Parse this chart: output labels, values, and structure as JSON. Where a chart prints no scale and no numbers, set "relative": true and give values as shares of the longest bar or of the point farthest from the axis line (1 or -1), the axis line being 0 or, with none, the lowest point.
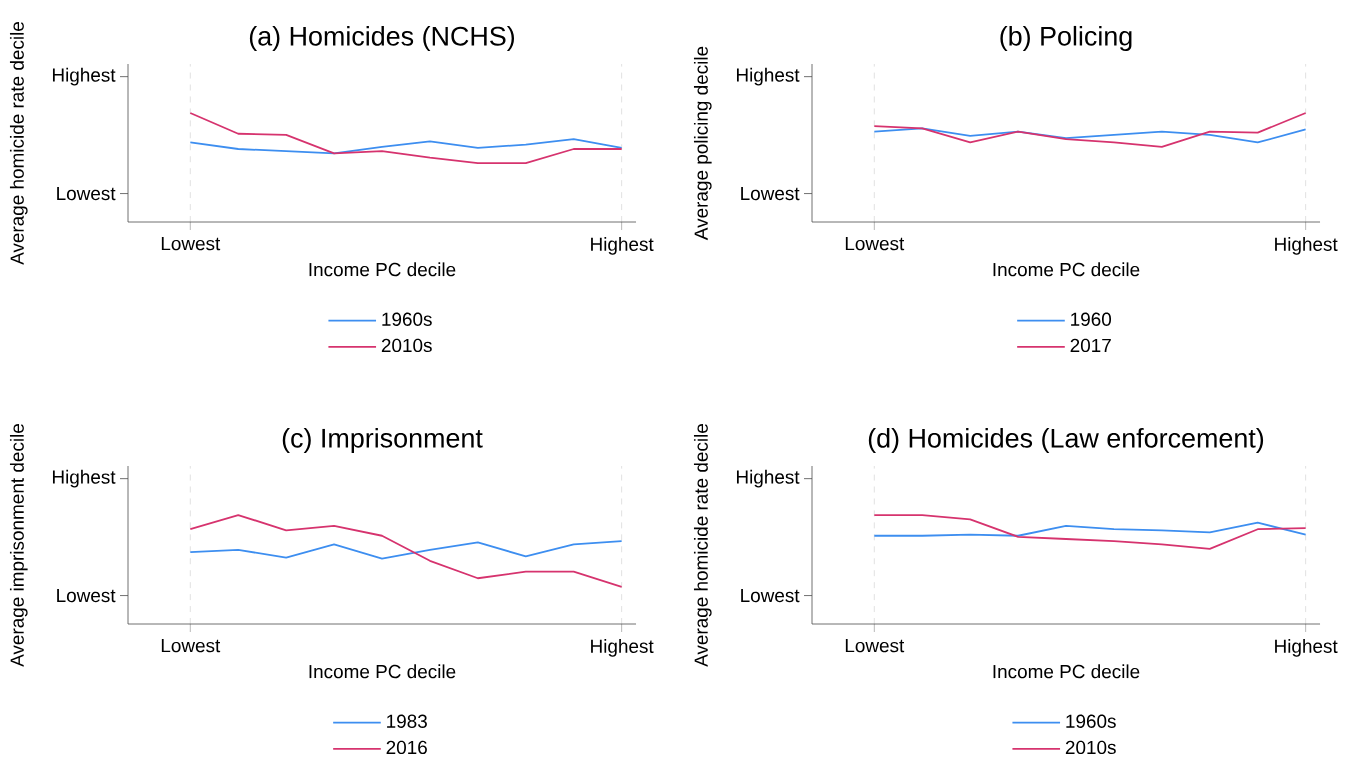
{
  "chart_data": [
    {
      "type": "line",
      "relative": true,
      "title": "(a) Homicides (NCHS)",
      "xlabel": "Income PC decile",
      "ylabel": "Average homicide rate decile",
      "categories": [
        "Lowest",
        null,
        null,
        null,
        null,
        null,
        null,
        null,
        null,
        "Highest"
      ],
      "annotations": [
        "Highest",
        "Lowest"
      ],
      "grid": "x",
      "legend": "bottom",
      "series": [
        {
          "name": "1960s",
          "color": "#3d8ef0",
          "values": [
            0.73,
            0.67,
            0.65,
            0.63,
            0.69,
            0.74,
            0.68,
            0.71,
            0.76,
            0.68
          ]
        },
        {
          "name": "2010s",
          "color": "#d6336e",
          "values": [
            1.0,
            0.81,
            0.8,
            0.63,
            0.65,
            0.59,
            0.54,
            0.54,
            0.67,
            0.67
          ]
        }
      ]
    },
    {
      "type": "line",
      "relative": true,
      "title": "(b) Policing",
      "xlabel": "Income PC decile",
      "ylabel": "Average policing decile",
      "categories": [
        "Lowest",
        null,
        null,
        null,
        null,
        null,
        null,
        null,
        null,
        "Highest"
      ],
      "annotations": [
        "Highest",
        "Lowest"
      ],
      "grid": "x",
      "legend": "bottom",
      "series": [
        {
          "name": "1960",
          "color": "#3d8ef0",
          "values": [
            0.83,
            0.86,
            0.79,
            0.83,
            0.77,
            0.8,
            0.83,
            0.8,
            0.73,
            0.85
          ]
        },
        {
          "name": "2017",
          "color": "#d6336e",
          "values": [
            0.88,
            0.86,
            0.73,
            0.83,
            0.76,
            0.73,
            0.69,
            0.83,
            0.82,
            1.0
          ]
        }
      ]
    },
    {
      "type": "line",
      "relative": true,
      "title": "(c) Imprisonment",
      "xlabel": "Income PC decile",
      "ylabel": "Average imprisonment decile",
      "categories": [
        "Lowest",
        null,
        null,
        null,
        null,
        null,
        null,
        null,
        null,
        "Highest"
      ],
      "annotations": [
        "Highest",
        "Lowest"
      ],
      "grid": "x",
      "legend": "bottom",
      "series": [
        {
          "name": "1983",
          "color": "#3d8ef0",
          "values": [
            0.66,
            0.68,
            0.61,
            0.73,
            0.6,
            0.68,
            0.75,
            0.62,
            0.73,
            0.76
          ]
        },
        {
          "name": "2016",
          "color": "#d6336e",
          "values": [
            0.87,
            1.0,
            0.86,
            0.9,
            0.81,
            0.58,
            0.42,
            0.48,
            0.48,
            0.34
          ]
        }
      ]
    },
    {
      "type": "line",
      "relative": true,
      "title": "(d) Homicides (Law enforcement)",
      "xlabel": "Income PC decile",
      "ylabel": "Average homicide rate decile",
      "categories": [
        "Lowest",
        null,
        null,
        null,
        null,
        null,
        null,
        null,
        null,
        "Highest"
      ],
      "annotations": [
        "Highest",
        "Lowest"
      ],
      "grid": "x",
      "legend": "bottom",
      "series": [
        {
          "name": "1960s",
          "color": "#3d8ef0",
          "values": [
            0.81,
            0.81,
            0.82,
            0.81,
            0.9,
            0.87,
            0.86,
            0.84,
            0.93,
            0.82
          ]
        },
        {
          "name": "2010s",
          "color": "#d6336e",
          "values": [
            1.0,
            1.0,
            0.96,
            0.8,
            0.78,
            0.76,
            0.73,
            0.69,
            0.87,
            0.88
          ]
        }
      ]
    }
  ]
}
